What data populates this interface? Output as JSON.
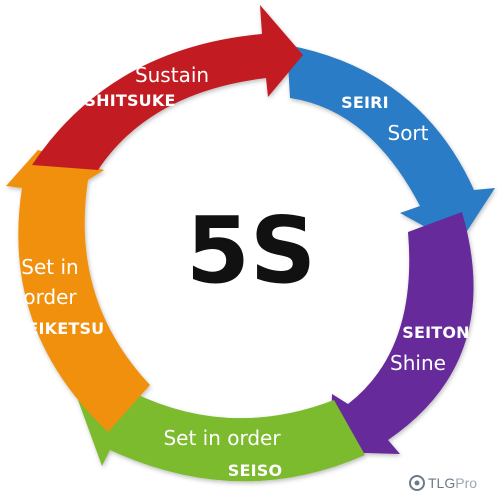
{
  "center_label": "5S",
  "steps": [
    {
      "key": "sort",
      "name": "SEIRI",
      "meaning": "Sort",
      "color": "#2b7bc6"
    },
    {
      "key": "shine",
      "name": "SEITON",
      "meaning": "Shine",
      "color": "#66299b"
    },
    {
      "key": "seiso",
      "name": "SEISO",
      "meaning": "Set in order",
      "color": "#7cba2f"
    },
    {
      "key": "seiketsu",
      "name": "SEIKETSU",
      "meaning_line1": "Set in",
      "meaning_line2": "order",
      "color": "#f0900f"
    },
    {
      "key": "shitsuke",
      "name": "SHITSUKE",
      "meaning": "Sustain",
      "color": "#c21a22"
    }
  ],
  "logo": {
    "main": "TLG",
    "suffix": "Pro"
  }
}
